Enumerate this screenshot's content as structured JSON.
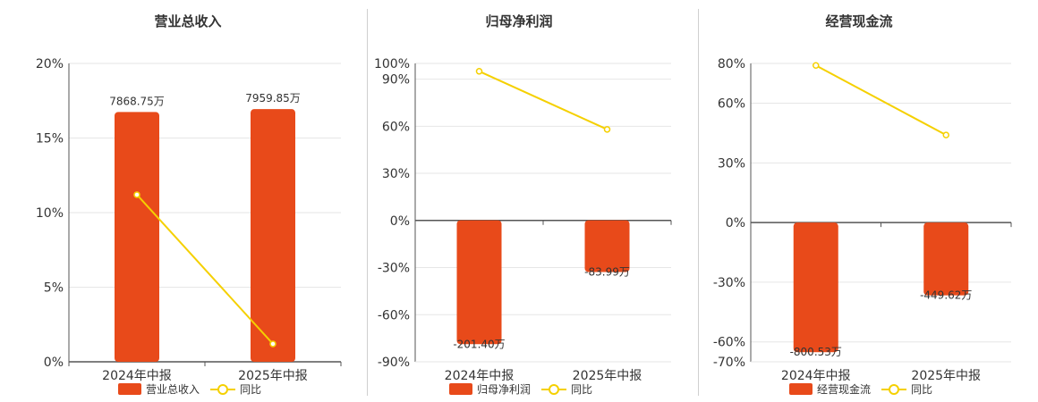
{
  "colors": {
    "bar": "#e84a1a",
    "line": "#f5d000",
    "grid": "#e6e6e6",
    "axis": "#555555",
    "text": "#333333"
  },
  "chart_data": [
    {
      "type": "bar",
      "title": "营业总收入",
      "categories": [
        "2024年中报",
        "2025年中报"
      ],
      "series": [
        {
          "name": "营业总收入",
          "kind": "bar",
          "values": [
            7868.75,
            7959.85
          ],
          "value_labels": [
            "7868.75万",
            "7959.85万"
          ]
        },
        {
          "name": "同比",
          "kind": "line",
          "values": [
            11.2,
            1.2
          ]
        }
      ],
      "yaxis": {
        "ticks": [
          0,
          5,
          10,
          15,
          20
        ],
        "tick_labels": [
          "0%",
          "5%",
          "10%",
          "15%",
          "20%"
        ],
        "min": 0,
        "max": 20
      },
      "bar_scale": {
        "min": 0,
        "max": 9400
      },
      "grid": true,
      "legend": "bottom"
    },
    {
      "type": "bar",
      "title": "归母净利润",
      "categories": [
        "2024年中报",
        "2025年中报"
      ],
      "series": [
        {
          "name": "归母净利润",
          "kind": "bar",
          "values": [
            -201.4,
            -83.99
          ],
          "value_labels": [
            "-201.40万",
            "-83.99万"
          ]
        },
        {
          "name": "同比",
          "kind": "line",
          "values": [
            95,
            58
          ]
        }
      ],
      "yaxis": {
        "ticks": [
          -90,
          -60,
          -30,
          0,
          30,
          60,
          90,
          100
        ],
        "tick_labels": [
          "-90%",
          "-60%",
          "-30%",
          "0%",
          "30%",
          "60%",
          "90%",
          "100%"
        ],
        "min": -90,
        "max": 100
      },
      "bar_scale": {
        "min": -230,
        "max": 255
      },
      "grid": true,
      "legend": "bottom"
    },
    {
      "type": "bar",
      "title": "经营现金流",
      "categories": [
        "2024年中报",
        "2025年中报"
      ],
      "series": [
        {
          "name": "经营现金流",
          "kind": "bar",
          "values": [
            -800.53,
            -449.62
          ],
          "value_labels": [
            "-800.53万",
            "-449.62万"
          ]
        },
        {
          "name": "同比",
          "kind": "line",
          "values": [
            79,
            44
          ]
        }
      ],
      "yaxis": {
        "ticks": [
          -70,
          -60,
          -30,
          0,
          30,
          60,
          80
        ],
        "tick_labels": [
          "-70%",
          "-60%",
          "-30%",
          "0%",
          "30%",
          "60%",
          "80%"
        ],
        "min": -70,
        "max": 80
      },
      "bar_scale": {
        "min": -860,
        "max": 983
      },
      "grid": true,
      "legend": "bottom"
    }
  ]
}
